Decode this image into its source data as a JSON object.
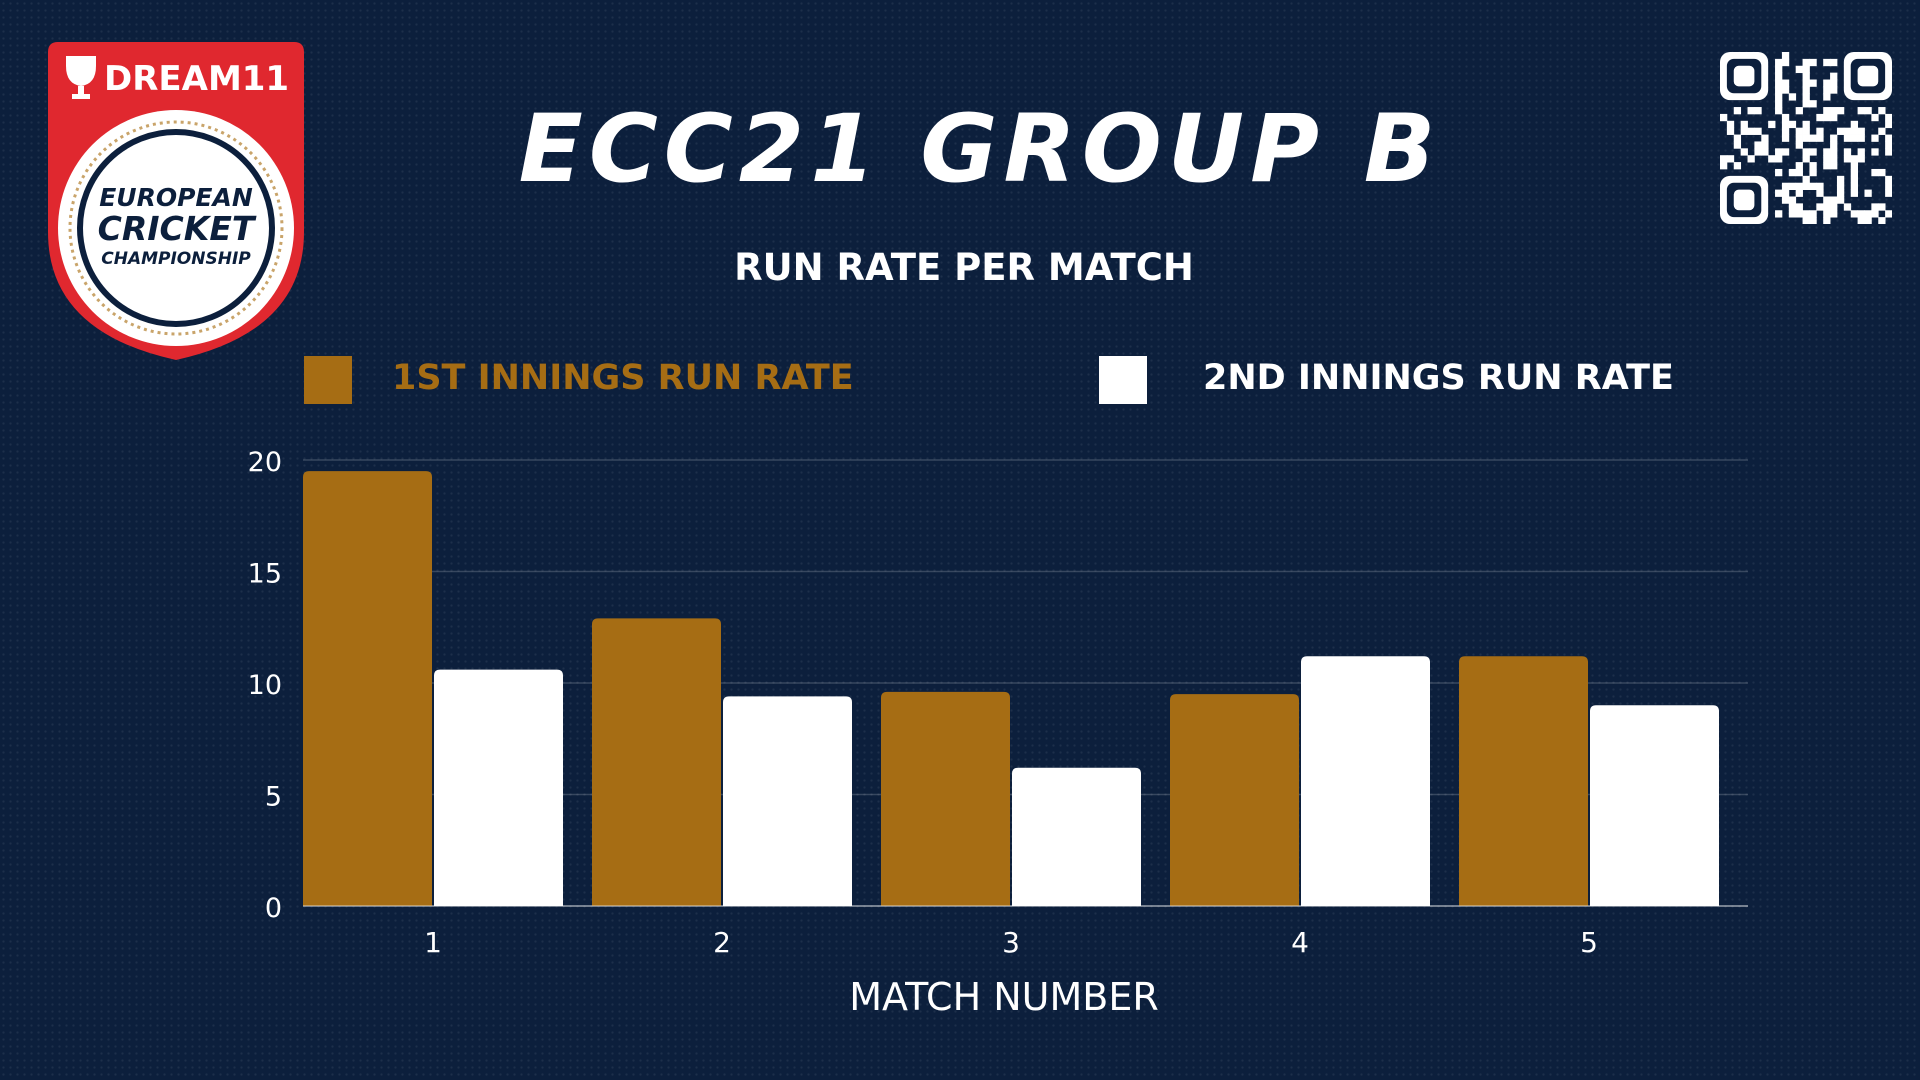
{
  "title": "ECC21 GROUP B",
  "subtitle": "RUN RATE PER MATCH",
  "logo": {
    "brand": "DREAM11",
    "line1": "EUROPEAN",
    "line2": "CRICKET",
    "line3": "CHAMPIONSHIP"
  },
  "colors": {
    "background": "#0c1f3c",
    "series1": "#a66d14",
    "series2": "#ffffff",
    "logo_red": "#e0282f"
  },
  "icons": {
    "top_right": "qr-code-icon"
  },
  "chart_data": {
    "type": "bar",
    "categories": [
      "1",
      "2",
      "3",
      "4",
      "5"
    ],
    "series": [
      {
        "name": "1ST INNINGS RUN RATE",
        "values": [
          19.5,
          12.9,
          9.6,
          9.5,
          11.2
        ],
        "color": "#a66d14"
      },
      {
        "name": "2ND INNINGS RUN RATE",
        "values": [
          10.6,
          9.4,
          6.2,
          11.2,
          9.0
        ],
        "color": "#ffffff"
      }
    ],
    "xlabel": "MATCH NUMBER",
    "ylabel": "",
    "ylim": [
      0,
      20
    ],
    "yticks": [
      "0",
      "5",
      "10",
      "15",
      "20"
    ],
    "grid": true,
    "legend": "top"
  }
}
